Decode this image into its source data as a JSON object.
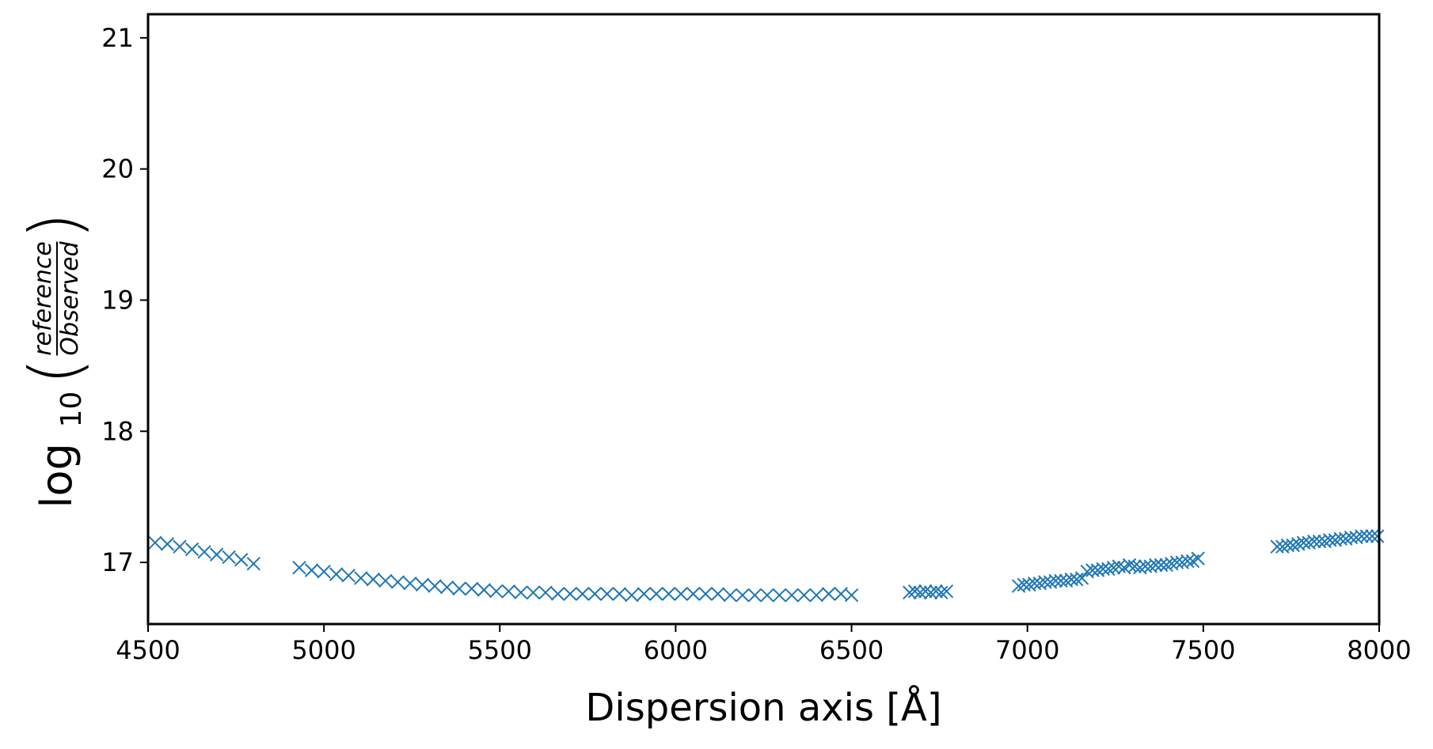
{
  "chart_data": {
    "type": "scatter",
    "xlabel": "Dispersion axis [Å]",
    "ylabel": {
      "prefix": "log",
      "subscript": "10",
      "numerator": "reference",
      "denominator": "Observed"
    },
    "xlim": [
      4500,
      8000
    ],
    "ylim": [
      16.53,
      21.18
    ],
    "xticks": [
      4500,
      5000,
      5500,
      6000,
      6500,
      7000,
      7500,
      8000
    ],
    "yticks": [
      17,
      18,
      19,
      20,
      21
    ],
    "marker": "x",
    "colors": {
      "series": "#1f77b4",
      "frame": "#000000"
    },
    "series": [
      {
        "x": [
          4520,
          4555,
          4590,
          4625,
          4660,
          4695,
          4730,
          4765,
          4800,
          4930,
          4965,
          5000,
          5035,
          5070,
          5105,
          5140,
          5175,
          5210,
          5245,
          5280,
          5315,
          5350,
          5385,
          5420,
          5455,
          5490,
          5525,
          5560,
          5595,
          5630,
          5665,
          5700,
          5735,
          5770,
          5805,
          5840,
          5875,
          5910,
          5945,
          5980,
          6015,
          6050,
          6085,
          6120,
          6155,
          6190,
          6225,
          6260,
          6295,
          6330,
          6365,
          6400,
          6435,
          6470,
          6500,
          6665,
          6680,
          6695,
          6710,
          6725,
          6740,
          6755,
          6770,
          6975,
          6990,
          7005,
          7020,
          7035,
          7050,
          7065,
          7080,
          7095,
          7110,
          7125,
          7140,
          7155,
          7170,
          7185,
          7200,
          7215,
          7230,
          7245,
          7260,
          7275,
          7290,
          7305,
          7320,
          7335,
          7350,
          7365,
          7380,
          7395,
          7410,
          7425,
          7440,
          7455,
          7470,
          7485,
          7710,
          7725,
          7740,
          7755,
          7770,
          7785,
          7800,
          7815,
          7830,
          7845,
          7860,
          7875,
          7890,
          7905,
          7920,
          7935,
          7950,
          7965,
          7980,
          7995
        ],
        "y": [
          17.15,
          17.14,
          17.12,
          17.1,
          17.08,
          17.06,
          17.04,
          17.02,
          16.99,
          16.96,
          16.94,
          16.93,
          16.91,
          16.9,
          16.88,
          16.87,
          16.86,
          16.85,
          16.84,
          16.83,
          16.82,
          16.81,
          16.8,
          16.8,
          16.79,
          16.78,
          16.78,
          16.77,
          16.77,
          16.77,
          16.76,
          16.76,
          16.76,
          16.76,
          16.76,
          16.76,
          16.75,
          16.76,
          16.76,
          16.76,
          16.76,
          16.76,
          16.76,
          16.76,
          16.75,
          16.75,
          16.75,
          16.75,
          16.75,
          16.75,
          16.75,
          16.75,
          16.76,
          16.76,
          16.75,
          16.77,
          16.78,
          16.77,
          16.78,
          16.77,
          16.78,
          16.77,
          16.78,
          16.82,
          16.83,
          16.83,
          16.84,
          16.84,
          16.85,
          16.85,
          16.86,
          16.86,
          16.86,
          16.87,
          16.87,
          16.88,
          16.93,
          16.94,
          16.94,
          16.95,
          16.95,
          16.96,
          16.97,
          16.96,
          16.98,
          16.97,
          16.96,
          16.97,
          16.97,
          16.98,
          16.98,
          16.98,
          16.99,
          17.0,
          17.0,
          17.01,
          17.01,
          17.03,
          17.12,
          17.12,
          17.13,
          17.13,
          17.14,
          17.15,
          17.15,
          17.16,
          17.16,
          17.16,
          17.17,
          17.17,
          17.18,
          17.18,
          17.19,
          17.19,
          17.2,
          17.2,
          17.2,
          17.2
        ]
      }
    ]
  }
}
